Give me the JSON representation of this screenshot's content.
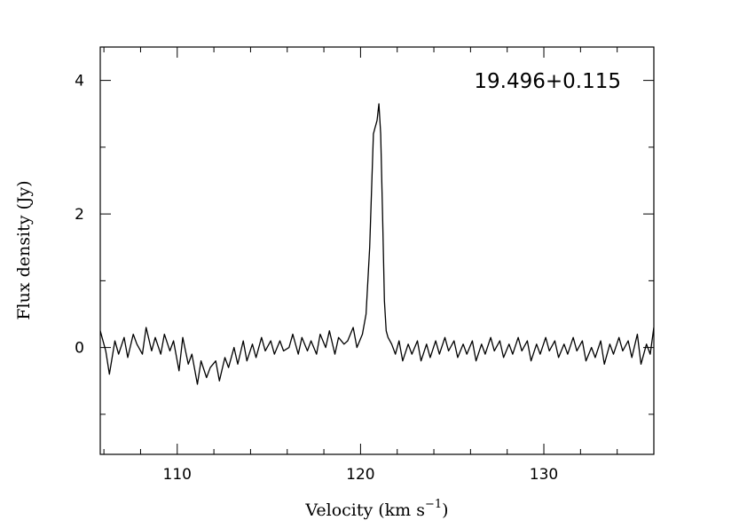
{
  "chart_data": {
    "type": "line",
    "title": "19.496+0.115",
    "xlabel": "Velocity (km s",
    "xlabel_superscript": "−1",
    "xlabel_suffix": ")",
    "ylabel": "Flux density (Jy)",
    "xlim": [
      105.8,
      136.0
    ],
    "ylim": [
      -1.6,
      4.5
    ],
    "xticks": [
      110,
      120,
      130
    ],
    "xtick_labels": [
      "110",
      "120",
      "130"
    ],
    "yticks": [
      0,
      2,
      4
    ],
    "ytick_labels": [
      "0",
      "2",
      "4"
    ],
    "grid": false,
    "legend": "none",
    "series": [
      {
        "color": "#000000",
        "x": [
          105.8,
          106.1,
          106.3,
          106.6,
          106.8,
          107.1,
          107.3,
          107.6,
          107.8,
          108.1,
          108.3,
          108.6,
          108.8,
          109.1,
          109.3,
          109.6,
          109.8,
          110.1,
          110.3,
          110.6,
          110.8,
          111.1,
          111.3,
          111.6,
          111.8,
          112.1,
          112.3,
          112.6,
          112.8,
          113.1,
          113.3,
          113.6,
          113.8,
          114.1,
          114.3,
          114.6,
          114.8,
          115.1,
          115.3,
          115.6,
          115.8,
          116.1,
          116.3,
          116.6,
          116.8,
          117.1,
          117.3,
          117.6,
          117.8,
          118.1,
          118.3,
          118.6,
          118.8,
          119.1,
          119.3,
          119.6,
          119.8,
          120.1,
          120.3,
          120.5,
          120.7,
          120.8,
          120.9,
          121.0,
          121.1,
          121.2,
          121.3,
          121.4,
          121.5,
          121.7,
          121.9,
          122.1,
          122.3,
          122.6,
          122.8,
          123.1,
          123.3,
          123.6,
          123.8,
          124.1,
          124.3,
          124.6,
          124.8,
          125.1,
          125.3,
          125.6,
          125.8,
          126.1,
          126.3,
          126.6,
          126.8,
          127.1,
          127.3,
          127.6,
          127.8,
          128.1,
          128.3,
          128.6,
          128.8,
          129.1,
          129.3,
          129.6,
          129.8,
          130.1,
          130.3,
          130.6,
          130.8,
          131.1,
          131.3,
          131.6,
          131.8,
          132.1,
          132.3,
          132.6,
          132.8,
          133.1,
          133.3,
          133.6,
          133.8,
          134.1,
          134.3,
          134.6,
          134.8,
          135.1,
          135.3,
          135.6,
          135.8,
          136.0
        ],
        "y": [
          0.25,
          -0.05,
          -0.4,
          0.1,
          -0.1,
          0.15,
          -0.15,
          0.2,
          0.05,
          -0.1,
          0.3,
          -0.05,
          0.15,
          -0.1,
          0.2,
          -0.05,
          0.1,
          -0.35,
          0.15,
          -0.25,
          -0.1,
          -0.55,
          -0.2,
          -0.45,
          -0.3,
          -0.2,
          -0.5,
          -0.15,
          -0.3,
          0.0,
          -0.25,
          0.1,
          -0.2,
          0.05,
          -0.15,
          0.15,
          -0.05,
          0.1,
          -0.1,
          0.1,
          -0.05,
          0.0,
          0.2,
          -0.1,
          0.15,
          -0.05,
          0.1,
          -0.1,
          0.2,
          0.0,
          0.25,
          -0.1,
          0.15,
          0.05,
          0.1,
          0.3,
          0.0,
          0.2,
          0.5,
          1.5,
          3.2,
          3.3,
          3.4,
          3.65,
          3.2,
          2.0,
          0.7,
          0.25,
          0.15,
          0.05,
          -0.1,
          0.1,
          -0.2,
          0.05,
          -0.1,
          0.1,
          -0.2,
          0.05,
          -0.15,
          0.1,
          -0.1,
          0.15,
          -0.05,
          0.1,
          -0.15,
          0.05,
          -0.1,
          0.1,
          -0.2,
          0.05,
          -0.1,
          0.15,
          -0.05,
          0.1,
          -0.15,
          0.05,
          -0.1,
          0.15,
          -0.05,
          0.1,
          -0.2,
          0.05,
          -0.1,
          0.15,
          -0.05,
          0.1,
          -0.15,
          0.05,
          -0.1,
          0.15,
          -0.05,
          0.1,
          -0.2,
          0.0,
          -0.15,
          0.1,
          -0.25,
          0.05,
          -0.1,
          0.15,
          -0.05,
          0.1,
          -0.15,
          0.2,
          -0.25,
          0.05,
          -0.1,
          0.3
        ]
      }
    ]
  }
}
